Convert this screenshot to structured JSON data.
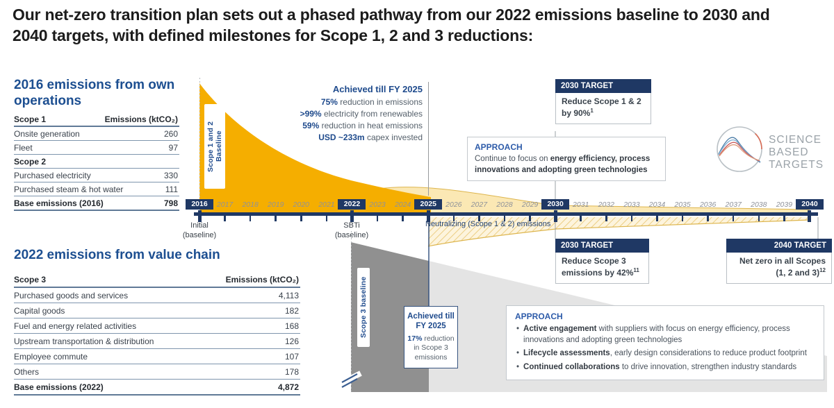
{
  "title": "Our net-zero transition plan sets out a phased pathway from our 2022 emissions baseline to 2030 and 2040 targets, with defined milestones for Scope 1, 2 and 3 reductions:",
  "colors": {
    "navy": "#1f3864",
    "heading_blue": "#1d4f91",
    "accent_blue": "#2d5ba9",
    "gold": "#f5ae00",
    "pale_gold": "#fbe8b4",
    "gold_edge": "#ddb54d",
    "dark_gray": "#909090",
    "light_gray": "#e4e4e4",
    "line_gray": "#7e95ad",
    "year_gray": "#8e929a",
    "logo_gray": "#9aa2a8"
  },
  "tables": {
    "own_operations": {
      "heading": "2016 emissions from own operations",
      "rows": [
        {
          "label": "Scope 1",
          "value": "Emissions (ktCO₂)",
          "style": "header"
        },
        {
          "label": "Onsite generation",
          "value": "260",
          "style": "row"
        },
        {
          "label": "Fleet",
          "value": "97",
          "style": "row"
        },
        {
          "label": "Scope 2",
          "value": "",
          "style": "subheader"
        },
        {
          "label": "Purchased electricity",
          "value": "330",
          "style": "row"
        },
        {
          "label": "Purchased steam & hot water",
          "value": "111",
          "style": "row"
        },
        {
          "label": "Base emissions (2016)",
          "value": "798",
          "style": "total"
        }
      ]
    },
    "value_chain": {
      "heading": "2022 emissions from value chain",
      "rows": [
        {
          "label": "Scope 3",
          "value": "Emissions (ktCO₂)",
          "style": "header"
        },
        {
          "label": "Purchased goods and services",
          "value": "4,113",
          "style": "row"
        },
        {
          "label": "Capital goods",
          "value": "182",
          "style": "row"
        },
        {
          "label": "Fuel and energy related activities",
          "value": "168",
          "style": "row"
        },
        {
          "label": "Upstream transportation & distribution",
          "value": "126",
          "style": "row"
        },
        {
          "label": "Employee commute",
          "value": "107",
          "style": "row"
        },
        {
          "label": "Others",
          "value": "178",
          "style": "row"
        },
        {
          "label": "Base emissions (2022)",
          "value": "4,872",
          "style": "total"
        }
      ]
    }
  },
  "timeline": {
    "years": [
      {
        "label": "2016",
        "highlight": true
      },
      {
        "label": "2017",
        "highlight": false
      },
      {
        "label": "2018",
        "highlight": false
      },
      {
        "label": "2019",
        "highlight": false
      },
      {
        "label": "2020",
        "highlight": false
      },
      {
        "label": "2021",
        "highlight": false
      },
      {
        "label": "2022",
        "highlight": true
      },
      {
        "label": "2023",
        "highlight": false
      },
      {
        "label": "2024",
        "highlight": false
      },
      {
        "label": "2025",
        "highlight": true
      },
      {
        "label": "2026",
        "highlight": false
      },
      {
        "label": "2027",
        "highlight": false
      },
      {
        "label": "2028",
        "highlight": false
      },
      {
        "label": "2029",
        "highlight": false
      },
      {
        "label": "2030",
        "highlight": true
      },
      {
        "label": "2031",
        "highlight": false
      },
      {
        "label": "2032",
        "highlight": false
      },
      {
        "label": "2033",
        "highlight": false
      },
      {
        "label": "2034",
        "highlight": false
      },
      {
        "label": "2035",
        "highlight": false
      },
      {
        "label": "2036",
        "highlight": false
      },
      {
        "label": "2037",
        "highlight": false
      },
      {
        "label": "2038",
        "highlight": false
      },
      {
        "label": "2039",
        "highlight": false
      },
      {
        "label": "2040",
        "highlight": true
      }
    ],
    "initial_label": "Initial\n(baseline)",
    "sbti_label": "SBTi\n(baseline)",
    "neutralizing_label": "Neutralizing (Scope 1 & 2) emissions"
  },
  "baselines": {
    "scope12": "Scope 1 and 2 Baseline",
    "scope3": "Scope 3 baseline"
  },
  "achieved_top": {
    "title": "Achieved till FY 2025",
    "lines": [
      {
        "strong": "75%",
        "rest": " reduction in emissions"
      },
      {
        "strong": ">99%",
        "rest": " electricity from renewables"
      },
      {
        "strong": "59%",
        "rest": " reduction in heat emissions"
      },
      {
        "strong": "USD ~233m",
        "rest": " capex invested"
      }
    ]
  },
  "achieved_bottom": {
    "title": "Achieved till FY 2025",
    "strong": "17%",
    "rest": " reduction in Scope 3 emissions"
  },
  "targets": {
    "t2030_top": {
      "header": "2030 TARGET",
      "body": "Reduce Scope 1 & 2 by 90%",
      "sup": "1"
    },
    "t2030_bottom": {
      "header": "2030 TARGET",
      "body": "Reduce Scope 3 emissions by 42%",
      "sup": "11"
    },
    "t2040": {
      "header": "2040 TARGET",
      "body": "Net zero in all Scopes (1, 2 and 3)",
      "sup": "12"
    }
  },
  "approach_top": {
    "title": "APPROACH",
    "lead": "Continue to focus on ",
    "strong": "energy efficiency, process innovations and adopting green technologies"
  },
  "approach_bottom": {
    "title": "APPROACH",
    "bullets": [
      {
        "strong": "Active engagement",
        "rest": " with suppliers with focus on energy efficiency, process innovations and adopting green technologies"
      },
      {
        "strong": "Lifecycle assessments",
        "rest": ", early design considerations to reduce product footprint"
      },
      {
        "strong": "Continued collaborations",
        "rest": " to drive innovation, strengthen industry standards"
      }
    ]
  },
  "logo": {
    "lines": [
      "SCIENCE",
      "BASED",
      "TARGETS"
    ]
  }
}
